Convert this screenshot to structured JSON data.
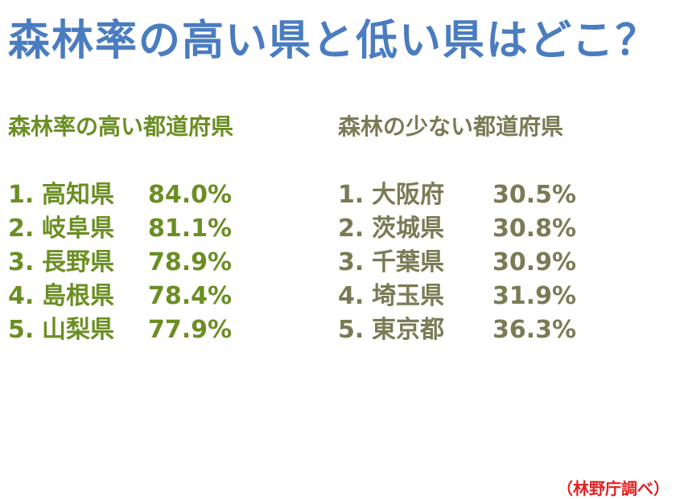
{
  "title": "森林率の高い県と低い県はどこ？",
  "high": {
    "heading": "森林率の高い都道府県",
    "items": [
      {
        "rank": "1.",
        "pref": "高知県",
        "pct": "84.0%"
      },
      {
        "rank": "2.",
        "pref": "岐阜県",
        "pct": "81.1%"
      },
      {
        "rank": "3.",
        "pref": "長野県",
        "pct": "78.9%"
      },
      {
        "rank": "4.",
        "pref": "島根県",
        "pct": "78.4%"
      },
      {
        "rank": "5.",
        "pref": "山梨県",
        "pct": "77.9%"
      }
    ]
  },
  "low": {
    "heading": "森林の少ない都道府県",
    "items": [
      {
        "rank": "1.",
        "pref": "大阪府",
        "pct": "30.5%"
      },
      {
        "rank": "2.",
        "pref": "茨城県",
        "pct": "30.8%"
      },
      {
        "rank": "3.",
        "pref": "千葉県",
        "pct": "30.9%"
      },
      {
        "rank": "4.",
        "pref": "埼玉県",
        "pct": "31.9%"
      },
      {
        "rank": "5.",
        "pref": "東京都",
        "pct": "36.3%"
      }
    ]
  },
  "source": "（林野庁調べ）",
  "colors": {
    "title": "#4a7cc0",
    "high": "#6b8e23",
    "low": "#7a7a55",
    "source": "#e02020"
  }
}
